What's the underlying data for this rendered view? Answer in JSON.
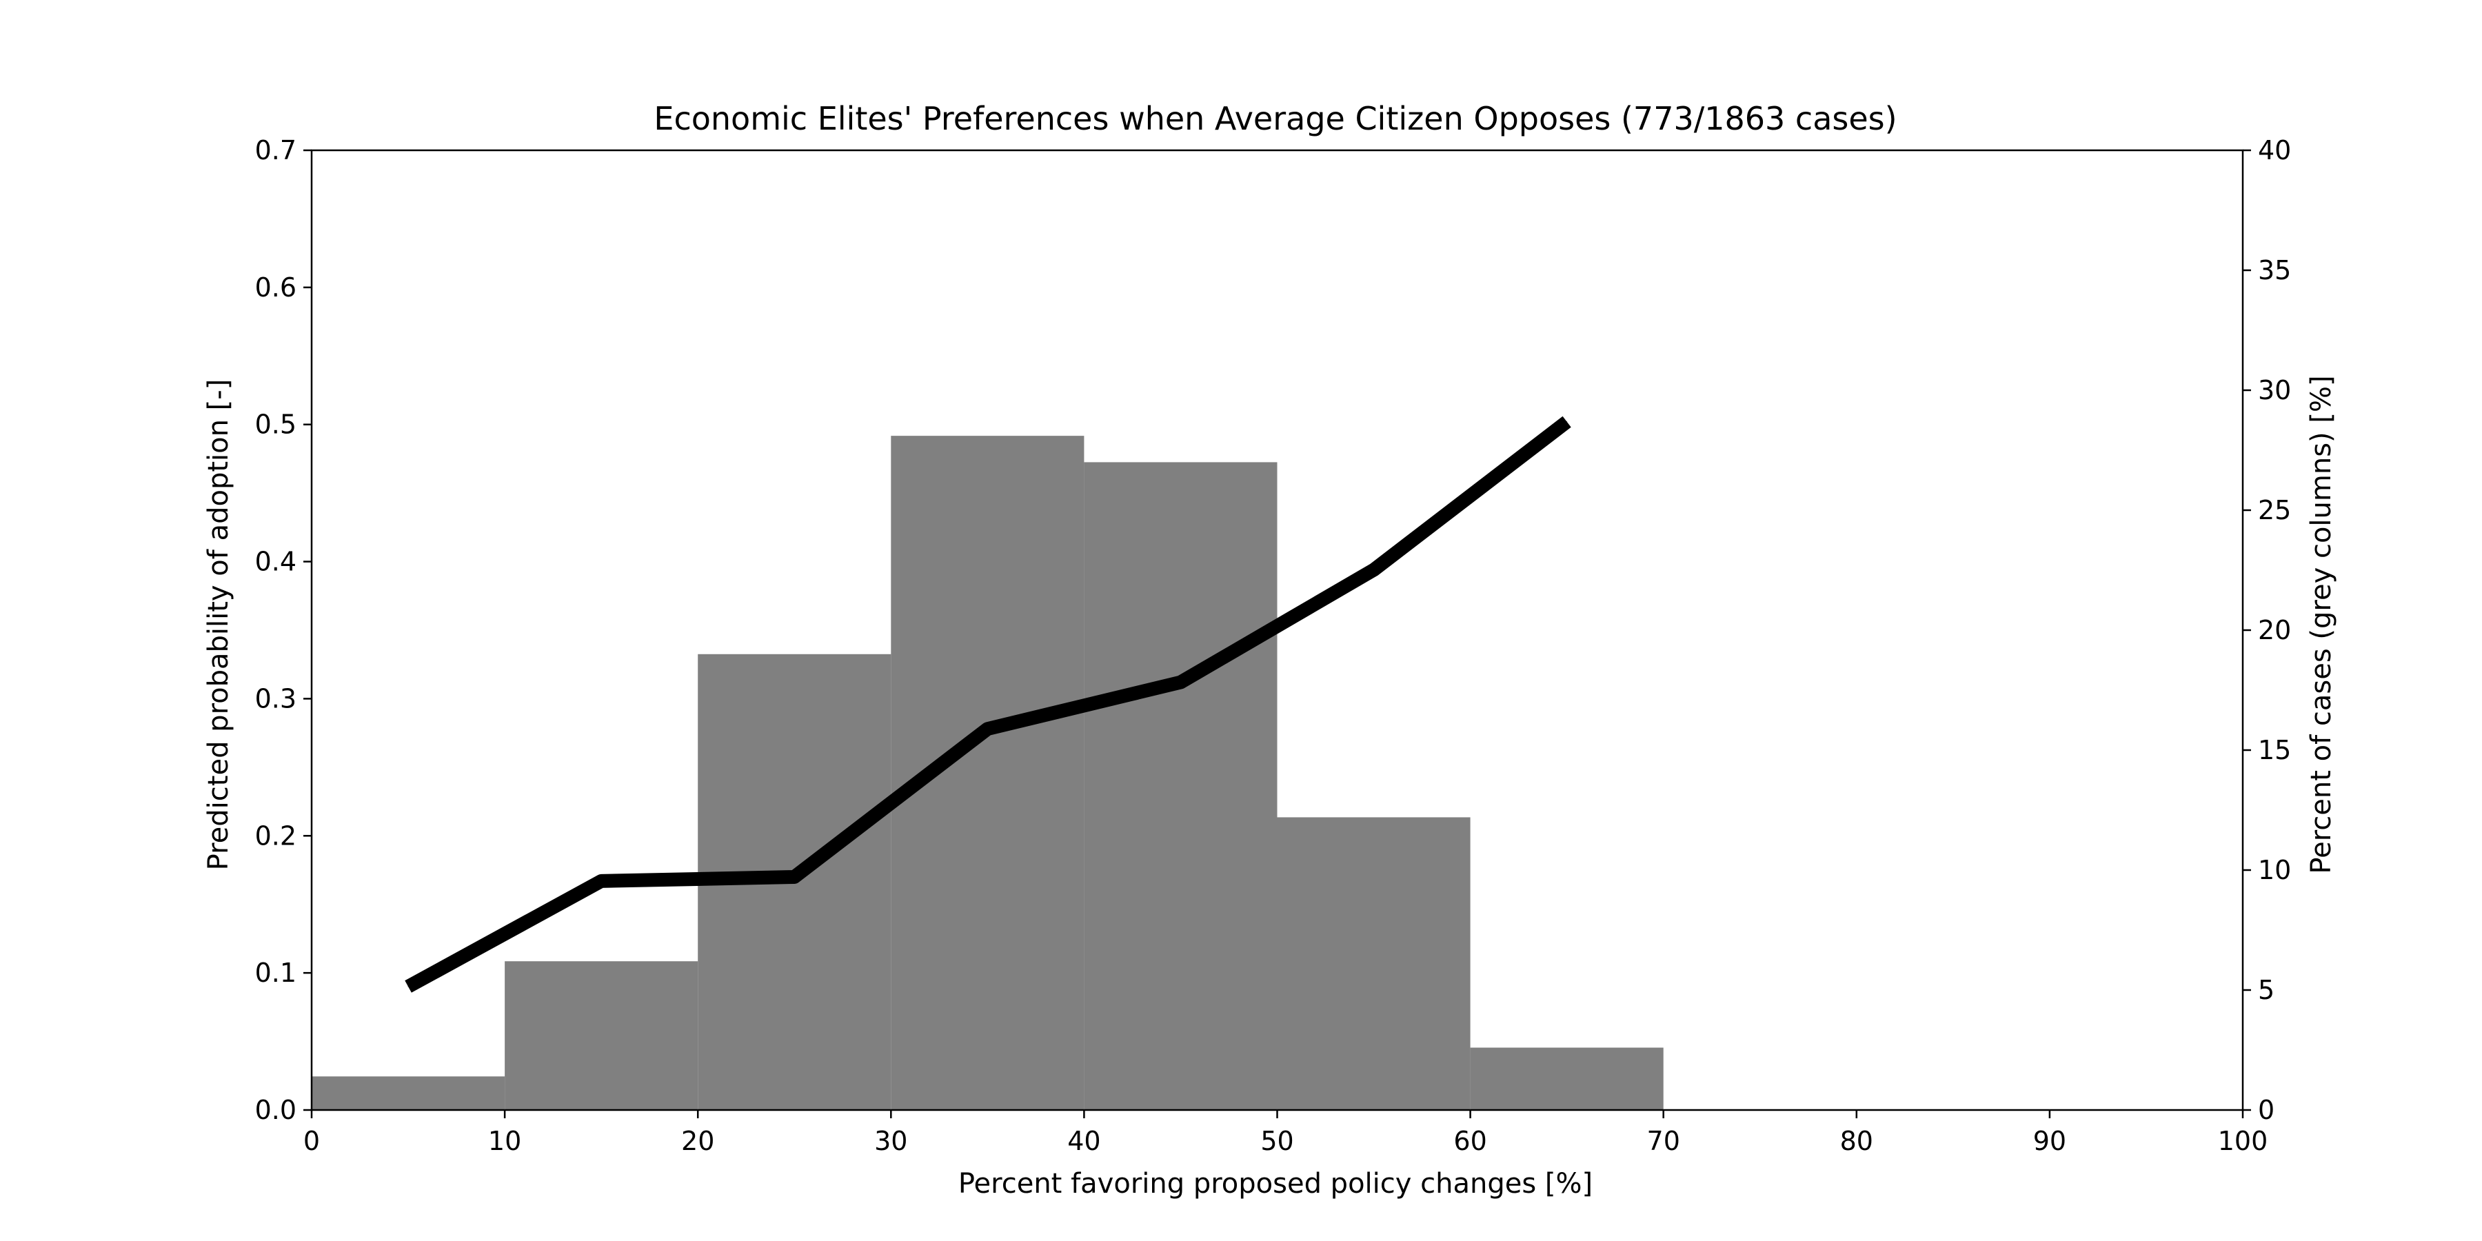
{
  "chart_data": {
    "type": "bar",
    "title": "Economic Elites' Preferences when Average Citizen Opposes (773/1863 cases)",
    "xlabel": "Percent favoring proposed policy changes [%]",
    "ylabel_left": "Predicted probability of adoption [-]",
    "ylabel_right": "Percent of cases (grey columns) [%]",
    "xlim": [
      0,
      100
    ],
    "ylim_left": [
      0,
      0.7
    ],
    "ylim_right": [
      0,
      40
    ],
    "x_ticks": [
      0,
      10,
      20,
      30,
      40,
      50,
      60,
      70,
      80,
      90,
      100
    ],
    "y_left_ticks": [
      0.0,
      0.1,
      0.2,
      0.3,
      0.4,
      0.5,
      0.6,
      0.7
    ],
    "y_right_ticks": [
      0,
      5,
      10,
      15,
      20,
      25,
      30,
      35,
      40
    ],
    "grid": false,
    "legend": "none",
    "bars": {
      "name": "Percent of cases",
      "axis": "right",
      "bins": [
        [
          0,
          10
        ],
        [
          10,
          20
        ],
        [
          20,
          30
        ],
        [
          30,
          40
        ],
        [
          40,
          50
        ],
        [
          50,
          60
        ],
        [
          60,
          70
        ]
      ],
      "values": [
        1.4,
        6.2,
        19.0,
        28.1,
        27.0,
        12.2,
        2.6
      ],
      "color": "#808080"
    },
    "line": {
      "name": "Predicted probability",
      "axis": "left",
      "x": [
        5,
        15,
        25,
        35,
        45,
        55,
        65
      ],
      "y": [
        0.09,
        0.167,
        0.17,
        0.278,
        0.312,
        0.394,
        0.502
      ],
      "color": "#000000"
    }
  }
}
